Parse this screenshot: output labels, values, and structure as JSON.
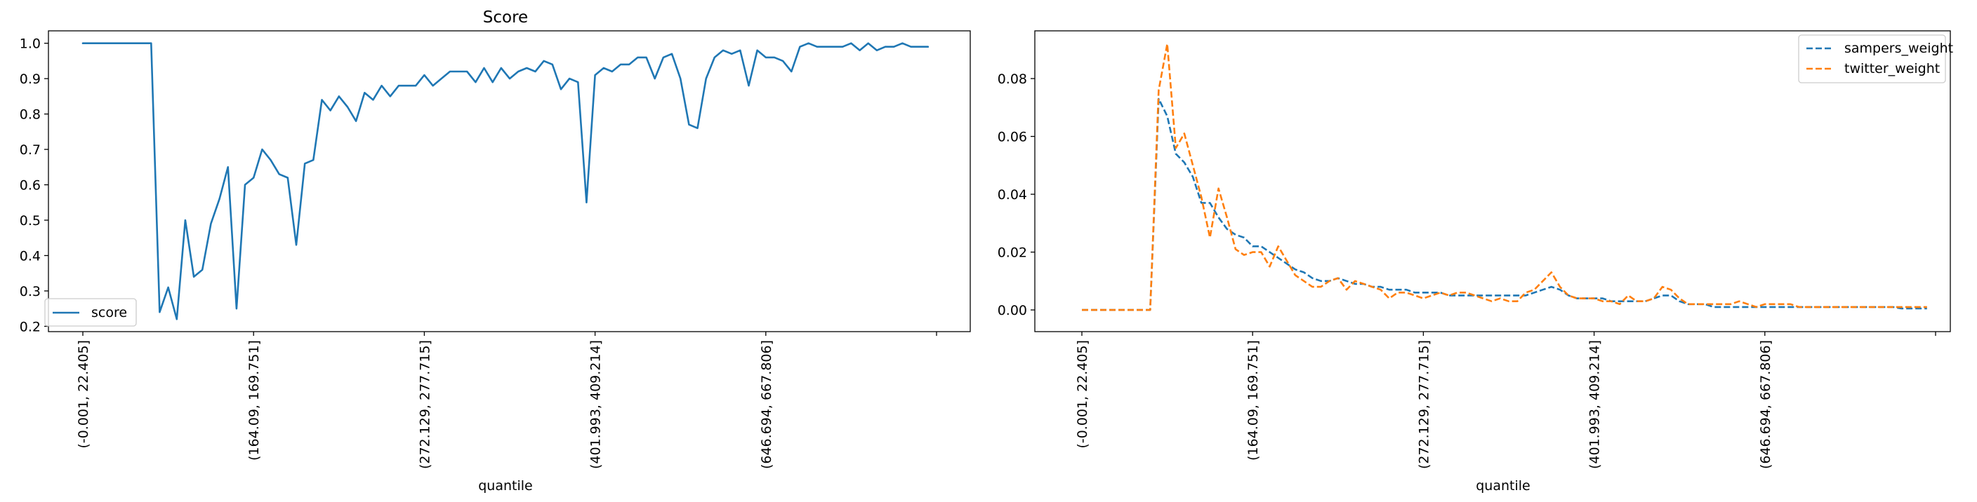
{
  "chart_data": [
    {
      "type": "line",
      "title": "Score",
      "xlabel": "quantile",
      "ylabel": "",
      "n_points": 100,
      "x_ticks": [
        {
          "index": 0,
          "label": "(-0.001, 22.405]"
        },
        {
          "index": 20,
          "label": "(164.09, 169.751]"
        },
        {
          "index": 40,
          "label": "(272.129, 277.715]"
        },
        {
          "index": 60,
          "label": "(401.993, 409.214]"
        },
        {
          "index": 80,
          "label": "(646.694, 667.806]"
        },
        {
          "index": 100,
          "label": ""
        }
      ],
      "y_ticks": [
        "0.2",
        "0.3",
        "0.4",
        "0.5",
        "0.6",
        "0.7",
        "0.8",
        "0.9",
        "1.0"
      ],
      "ylim": [
        0.185,
        1.035
      ],
      "legend": {
        "position": "lower left",
        "entries": [
          "score"
        ]
      },
      "series": [
        {
          "name": "score",
          "color": "#1f77b4",
          "style": "solid",
          "values": [
            1.0,
            1.0,
            1.0,
            1.0,
            1.0,
            1.0,
            1.0,
            1.0,
            1.0,
            0.24,
            0.31,
            0.22,
            0.5,
            0.34,
            0.36,
            0.49,
            0.56,
            0.65,
            0.25,
            0.6,
            0.62,
            0.7,
            0.67,
            0.63,
            0.62,
            0.43,
            0.66,
            0.67,
            0.84,
            0.81,
            0.85,
            0.82,
            0.78,
            0.86,
            0.84,
            0.88,
            0.85,
            0.88,
            0.88,
            0.88,
            0.91,
            0.88,
            0.9,
            0.92,
            0.92,
            0.92,
            0.89,
            0.93,
            0.89,
            0.93,
            0.9,
            0.92,
            0.93,
            0.92,
            0.95,
            0.94,
            0.87,
            0.9,
            0.89,
            0.55,
            0.91,
            0.93,
            0.92,
            0.94,
            0.94,
            0.96,
            0.96,
            0.9,
            0.96,
            0.97,
            0.9,
            0.77,
            0.76,
            0.9,
            0.96,
            0.98,
            0.97,
            0.98,
            0.88,
            0.98,
            0.96,
            0.96,
            0.95,
            0.92,
            0.99,
            1.0,
            0.99,
            0.99,
            0.99,
            0.99,
            1.0,
            0.98,
            1.0,
            0.98,
            0.99,
            0.99,
            1.0,
            0.99,
            0.99,
            0.99
          ]
        }
      ]
    },
    {
      "type": "line",
      "title": "",
      "xlabel": "quantile",
      "ylabel": "",
      "n_points": 100,
      "x_ticks": [
        {
          "index": 0,
          "label": "(-0.001, 22.405]"
        },
        {
          "index": 20,
          "label": "(164.09, 169.751]"
        },
        {
          "index": 40,
          "label": "(272.129, 277.715]"
        },
        {
          "index": 60,
          "label": "(401.993, 409.214]"
        },
        {
          "index": 80,
          "label": "(646.694, 667.806]"
        },
        {
          "index": 100,
          "label": ""
        }
      ],
      "y_ticks": [
        "0.00",
        "0.02",
        "0.04",
        "0.06",
        "0.08"
      ],
      "ylim": [
        -0.0075,
        0.0965
      ],
      "legend": {
        "position": "upper right",
        "entries": [
          "sampers_weight",
          "twitter_weight"
        ]
      },
      "series": [
        {
          "name": "sampers_weight",
          "color": "#1f77b4",
          "style": "dashed",
          "values": [
            0.0,
            0.0,
            0.0,
            0.0,
            0.0,
            0.0,
            0.0,
            0.0,
            0.0,
            0.073,
            0.067,
            0.054,
            0.051,
            0.046,
            0.037,
            0.037,
            0.032,
            0.028,
            0.026,
            0.025,
            0.022,
            0.022,
            0.02,
            0.018,
            0.016,
            0.014,
            0.013,
            0.011,
            0.01,
            0.01,
            0.011,
            0.01,
            0.009,
            0.009,
            0.008,
            0.008,
            0.007,
            0.007,
            0.007,
            0.006,
            0.006,
            0.006,
            0.006,
            0.005,
            0.005,
            0.005,
            0.005,
            0.005,
            0.005,
            0.005,
            0.005,
            0.005,
            0.005,
            0.006,
            0.007,
            0.008,
            0.007,
            0.005,
            0.004,
            0.004,
            0.004,
            0.004,
            0.003,
            0.003,
            0.003,
            0.003,
            0.003,
            0.004,
            0.005,
            0.005,
            0.003,
            0.002,
            0.002,
            0.002,
            0.001,
            0.001,
            0.001,
            0.001,
            0.001,
            0.001,
            0.001,
            0.001,
            0.001,
            0.001,
            0.001,
            0.001,
            0.001,
            0.001,
            0.001,
            0.001,
            0.001,
            0.001,
            0.001,
            0.001,
            0.001,
            0.001,
            0.0005,
            0.0005,
            0.0005,
            0.0005
          ]
        },
        {
          "name": "twitter_weight",
          "color": "#ff7f0e",
          "style": "dashed",
          "values": [
            0.0,
            0.0,
            0.0,
            0.0,
            0.0,
            0.0,
            0.0,
            0.0,
            0.0,
            0.076,
            0.092,
            0.056,
            0.061,
            0.05,
            0.039,
            0.025,
            0.042,
            0.032,
            0.021,
            0.019,
            0.02,
            0.02,
            0.015,
            0.022,
            0.017,
            0.012,
            0.01,
            0.008,
            0.008,
            0.01,
            0.011,
            0.007,
            0.01,
            0.009,
            0.008,
            0.007,
            0.004,
            0.006,
            0.006,
            0.005,
            0.004,
            0.005,
            0.006,
            0.005,
            0.006,
            0.006,
            0.005,
            0.004,
            0.003,
            0.004,
            0.003,
            0.003,
            0.006,
            0.007,
            0.01,
            0.013,
            0.008,
            0.005,
            0.004,
            0.004,
            0.004,
            0.003,
            0.003,
            0.002,
            0.005,
            0.003,
            0.003,
            0.004,
            0.008,
            0.007,
            0.004,
            0.002,
            0.002,
            0.002,
            0.002,
            0.002,
            0.002,
            0.003,
            0.002,
            0.001,
            0.002,
            0.002,
            0.002,
            0.002,
            0.001,
            0.001,
            0.001,
            0.001,
            0.001,
            0.001,
            0.001,
            0.001,
            0.001,
            0.001,
            0.001,
            0.001,
            0.001,
            0.001,
            0.001,
            0.001
          ]
        }
      ]
    }
  ]
}
